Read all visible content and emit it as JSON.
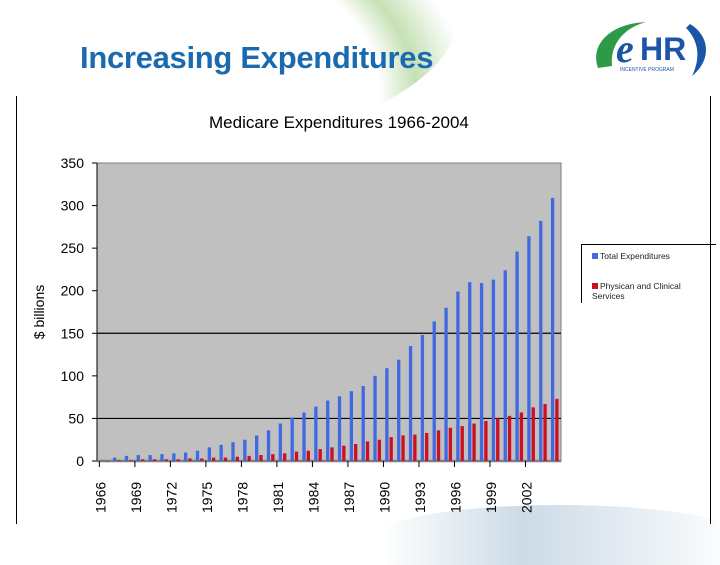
{
  "slide": {
    "title": "Increasing Expenditures",
    "logo": {
      "text": "eHR",
      "subtitle": "INCENTIVE PROGRAM",
      "colors": {
        "green": "#2e9a47",
        "blue": "#1a55a8"
      }
    }
  },
  "chart_data": {
    "type": "bar",
    "title": "Medicare Expenditures 1966-2004",
    "xlabel": "",
    "ylabel": "$ billions",
    "ylim": [
      0,
      350
    ],
    "yticks": [
      0,
      50,
      100,
      150,
      200,
      250,
      300,
      350
    ],
    "gridlines_at": [
      50,
      150
    ],
    "plot_background": "#c0c0c0",
    "legend_position": "right",
    "categories": [
      1966,
      1967,
      1968,
      1969,
      1970,
      1971,
      1972,
      1973,
      1974,
      1975,
      1976,
      1977,
      1978,
      1979,
      1980,
      1981,
      1982,
      1983,
      1984,
      1985,
      1986,
      1987,
      1988,
      1989,
      1990,
      1991,
      1992,
      1993,
      1994,
      1995,
      1996,
      1997,
      1998,
      1999,
      2000,
      2001,
      2002,
      2003,
      2004
    ],
    "xtick_labels": [
      "1966",
      "1969",
      "1972",
      "1975",
      "1978",
      "1981",
      "1984",
      "1987",
      "1990",
      "1993",
      "1996",
      "1999",
      "2002"
    ],
    "series": [
      {
        "name": "Total Expenditures",
        "color": "#4169e1",
        "values": [
          1,
          4,
          6,
          7,
          7,
          8,
          9,
          10,
          12,
          16,
          19,
          22,
          25,
          30,
          36,
          44,
          51,
          57,
          64,
          71,
          76,
          82,
          88,
          100,
          109,
          119,
          135,
          148,
          164,
          180,
          199,
          210,
          209,
          213,
          224,
          246,
          264,
          282,
          309
        ]
      },
      {
        "name": "Physican and Clinical Services",
        "color": "#cc1020",
        "values": [
          0,
          1,
          1,
          2,
          2,
          2,
          2,
          3,
          3,
          4,
          4,
          5,
          6,
          7,
          8,
          9,
          11,
          12,
          14,
          16,
          18,
          20,
          23,
          25,
          28,
          30,
          31,
          33,
          36,
          39,
          41,
          44,
          47,
          50,
          53,
          57,
          63,
          67,
          73
        ]
      }
    ]
  }
}
